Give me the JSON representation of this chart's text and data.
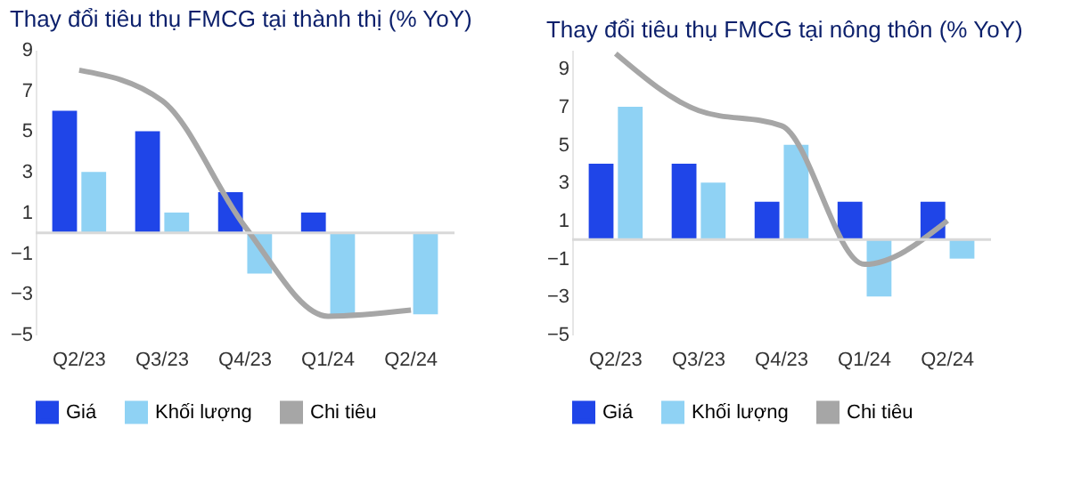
{
  "chart_data": [
    {
      "type": "bar",
      "title": "Thay đổi tiêu thụ FMCG tại thành thị (% YoY)",
      "categories": [
        "Q2/23",
        "Q3/23",
        "Q4/23",
        "Q1/24",
        "Q2/24"
      ],
      "ylim": [
        -5,
        9
      ],
      "yticks": [
        -5,
        -3,
        -1,
        1,
        3,
        5,
        7,
        9
      ],
      "grid": false,
      "legend": "bottom",
      "ref_lines": [
        {
          "axis": "y",
          "value": 0,
          "color": "#d9d9d9"
        }
      ],
      "series": [
        {
          "name": "Giá",
          "color": "#1f45e8",
          "values": [
            6,
            5,
            2,
            1,
            null
          ]
        },
        {
          "name": "Khối lượng",
          "color": "#8fd2f4",
          "values": [
            3,
            1,
            -2,
            -4,
            -4
          ]
        },
        {
          "name": "Chi tiêu",
          "type": "line",
          "color": "#a6a6a6",
          "values": [
            8,
            6.5,
            0.3,
            -4.1,
            -3.8
          ]
        }
      ]
    },
    {
      "type": "bar",
      "title": "Thay đổi tiêu thụ FMCG tại nông thôn (% YoY)",
      "categories": [
        "Q2/23",
        "Q3/23",
        "Q4/23",
        "Q1/24",
        "Q2/24"
      ],
      "ylim": [
        -5,
        10
      ],
      "yticks": [
        -5,
        -3,
        -1,
        1,
        3,
        5,
        7,
        9
      ],
      "grid": false,
      "legend": "bottom",
      "ref_lines": [
        {
          "axis": "y",
          "value": 0,
          "color": "#d9d9d9"
        }
      ],
      "series": [
        {
          "name": "Giá",
          "color": "#1f45e8",
          "values": [
            4,
            4,
            2,
            2,
            2
          ]
        },
        {
          "name": "Khối lượng",
          "color": "#8fd2f4",
          "values": [
            7,
            3,
            5,
            -3,
            -1
          ]
        },
        {
          "name": "Chi tiêu",
          "type": "line",
          "color": "#a6a6a6",
          "values": [
            9.8,
            6.8,
            6.0,
            -1.3,
            1.0
          ]
        }
      ]
    }
  ]
}
